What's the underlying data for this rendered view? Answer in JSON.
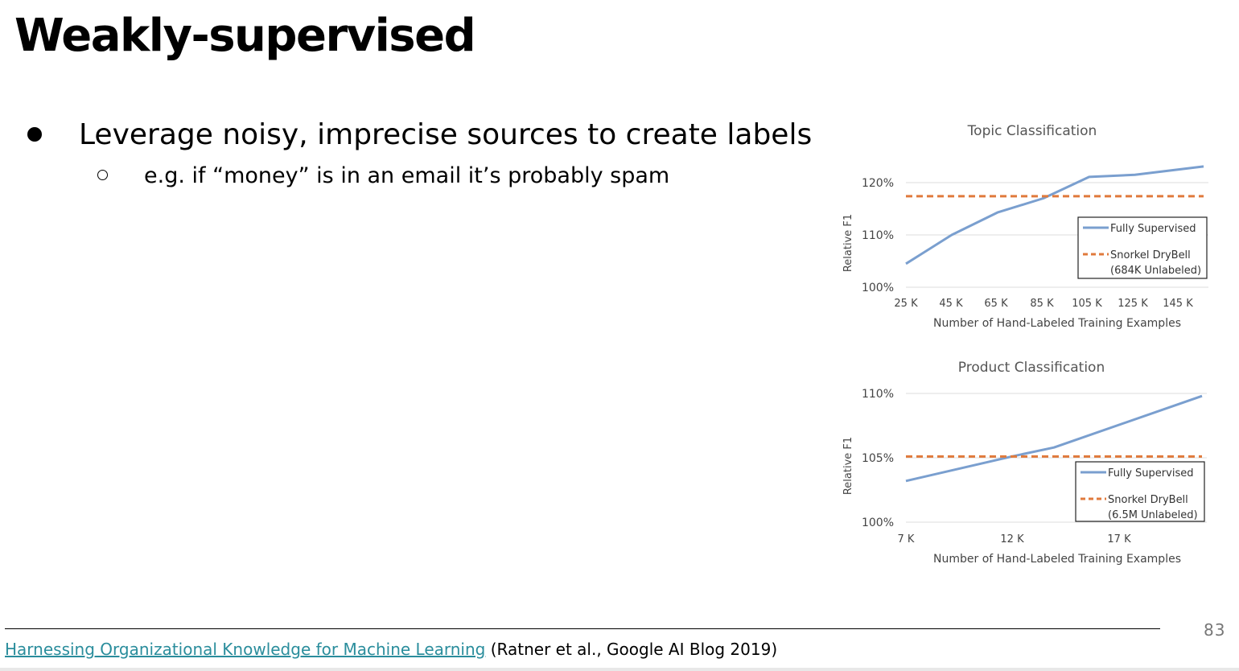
{
  "slide": {
    "title": "Weakly-supervised",
    "bullet": "Leverage noisy, imprecise sources to create labels",
    "sub_bullet": "e.g. if “money” is in an email it’s probably spam",
    "page_number": "83",
    "citation_link": "Harnessing Organizational Knowledge for Machine Learning",
    "citation_rest": " (Ratner et al., Google AI Blog 2019)"
  },
  "colors": {
    "fully_supervised": "#7a9fcf",
    "snorkel": "#e07a3c",
    "gridline": "#dcdcdc",
    "link": "#2a8d9c"
  },
  "chart_data": [
    {
      "type": "line",
      "title": "Topic Classification",
      "xlabel": "Number of Hand-Labeled Training Examples",
      "ylabel": "Relative F1",
      "x_ticks": [
        "25 K",
        "45 K",
        "65 K",
        "85 K",
        "105 K",
        "125 K",
        "145 K"
      ],
      "y_ticks": [
        "100%",
        "110%",
        "120%"
      ],
      "xlim": [
        25,
        155
      ],
      "ylim": [
        100,
        120
      ],
      "grid": true,
      "legend_position": "bottom-right",
      "series": [
        {
          "name": "Fully Supervised",
          "style": "solid",
          "x": [
            25,
            45,
            65,
            85,
            105,
            125,
            155
          ],
          "y": [
            104.5,
            110.0,
            114.3,
            117.0,
            121.1,
            121.5,
            123.1
          ]
        },
        {
          "name": "Snorkel DryBell",
          "name_line2": "(684K Unlabeled)",
          "style": "dashed",
          "x": [
            25,
            155
          ],
          "y": [
            117.4,
            117.4
          ]
        }
      ]
    },
    {
      "type": "line",
      "title": "Product Classification",
      "xlabel": "Number of Hand-Labeled Training Examples",
      "ylabel": "Relative F1",
      "x_ticks": [
        "7 K",
        "12 K",
        "17 K"
      ],
      "y_ticks": [
        "100%",
        "105%",
        "110%"
      ],
      "xlim": [
        7,
        21
      ],
      "ylim": [
        100,
        110
      ],
      "grid": true,
      "legend_position": "bottom-right",
      "series": [
        {
          "name": "Fully Supervised",
          "style": "solid",
          "x": [
            7,
            12,
            14,
            21
          ],
          "y": [
            103.2,
            105.1,
            105.8,
            109.8
          ]
        },
        {
          "name": "Snorkel DryBell",
          "name_line2": "(6.5M Unlabeled)",
          "style": "dashed",
          "x": [
            7,
            21
          ],
          "y": [
            105.1,
            105.1
          ]
        }
      ]
    }
  ]
}
